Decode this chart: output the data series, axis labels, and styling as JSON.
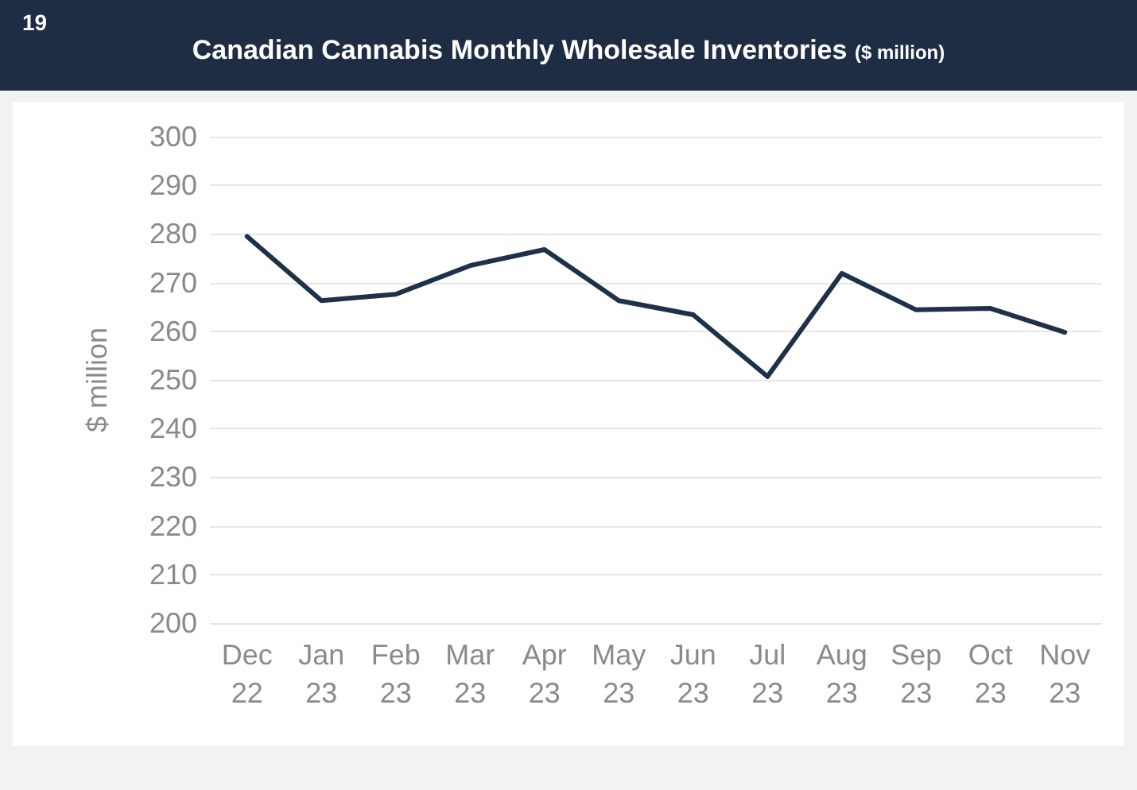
{
  "chart_data": {
    "type": "line",
    "title": "Canadian Cannabis Monthly Wholesale Inventories",
    "subtitle": "($ million)",
    "annotations": [
      "19"
    ],
    "ylabel": "$ million",
    "categories": [
      "Dec 22",
      "Jan 23",
      "Feb 23",
      "Mar 23",
      "Apr 23",
      "May 23",
      "Jun 23",
      "Jul 23",
      "Aug 23",
      "Sep 23",
      "Oct 23",
      "Nov 23"
    ],
    "series": [
      {
        "color": "#1f3049",
        "values": [
          279.5,
          266.3,
          267.6,
          273.5,
          276.8,
          266.3,
          263.4,
          250.7,
          271.9,
          264.4,
          264.7,
          259.8
        ]
      }
    ],
    "ylim": [
      200,
      300
    ],
    "yticks": [
      200,
      210,
      220,
      230,
      240,
      250,
      260,
      270,
      280,
      290,
      300
    ],
    "grid": "y",
    "marker": "none",
    "line_style": "solid"
  }
}
